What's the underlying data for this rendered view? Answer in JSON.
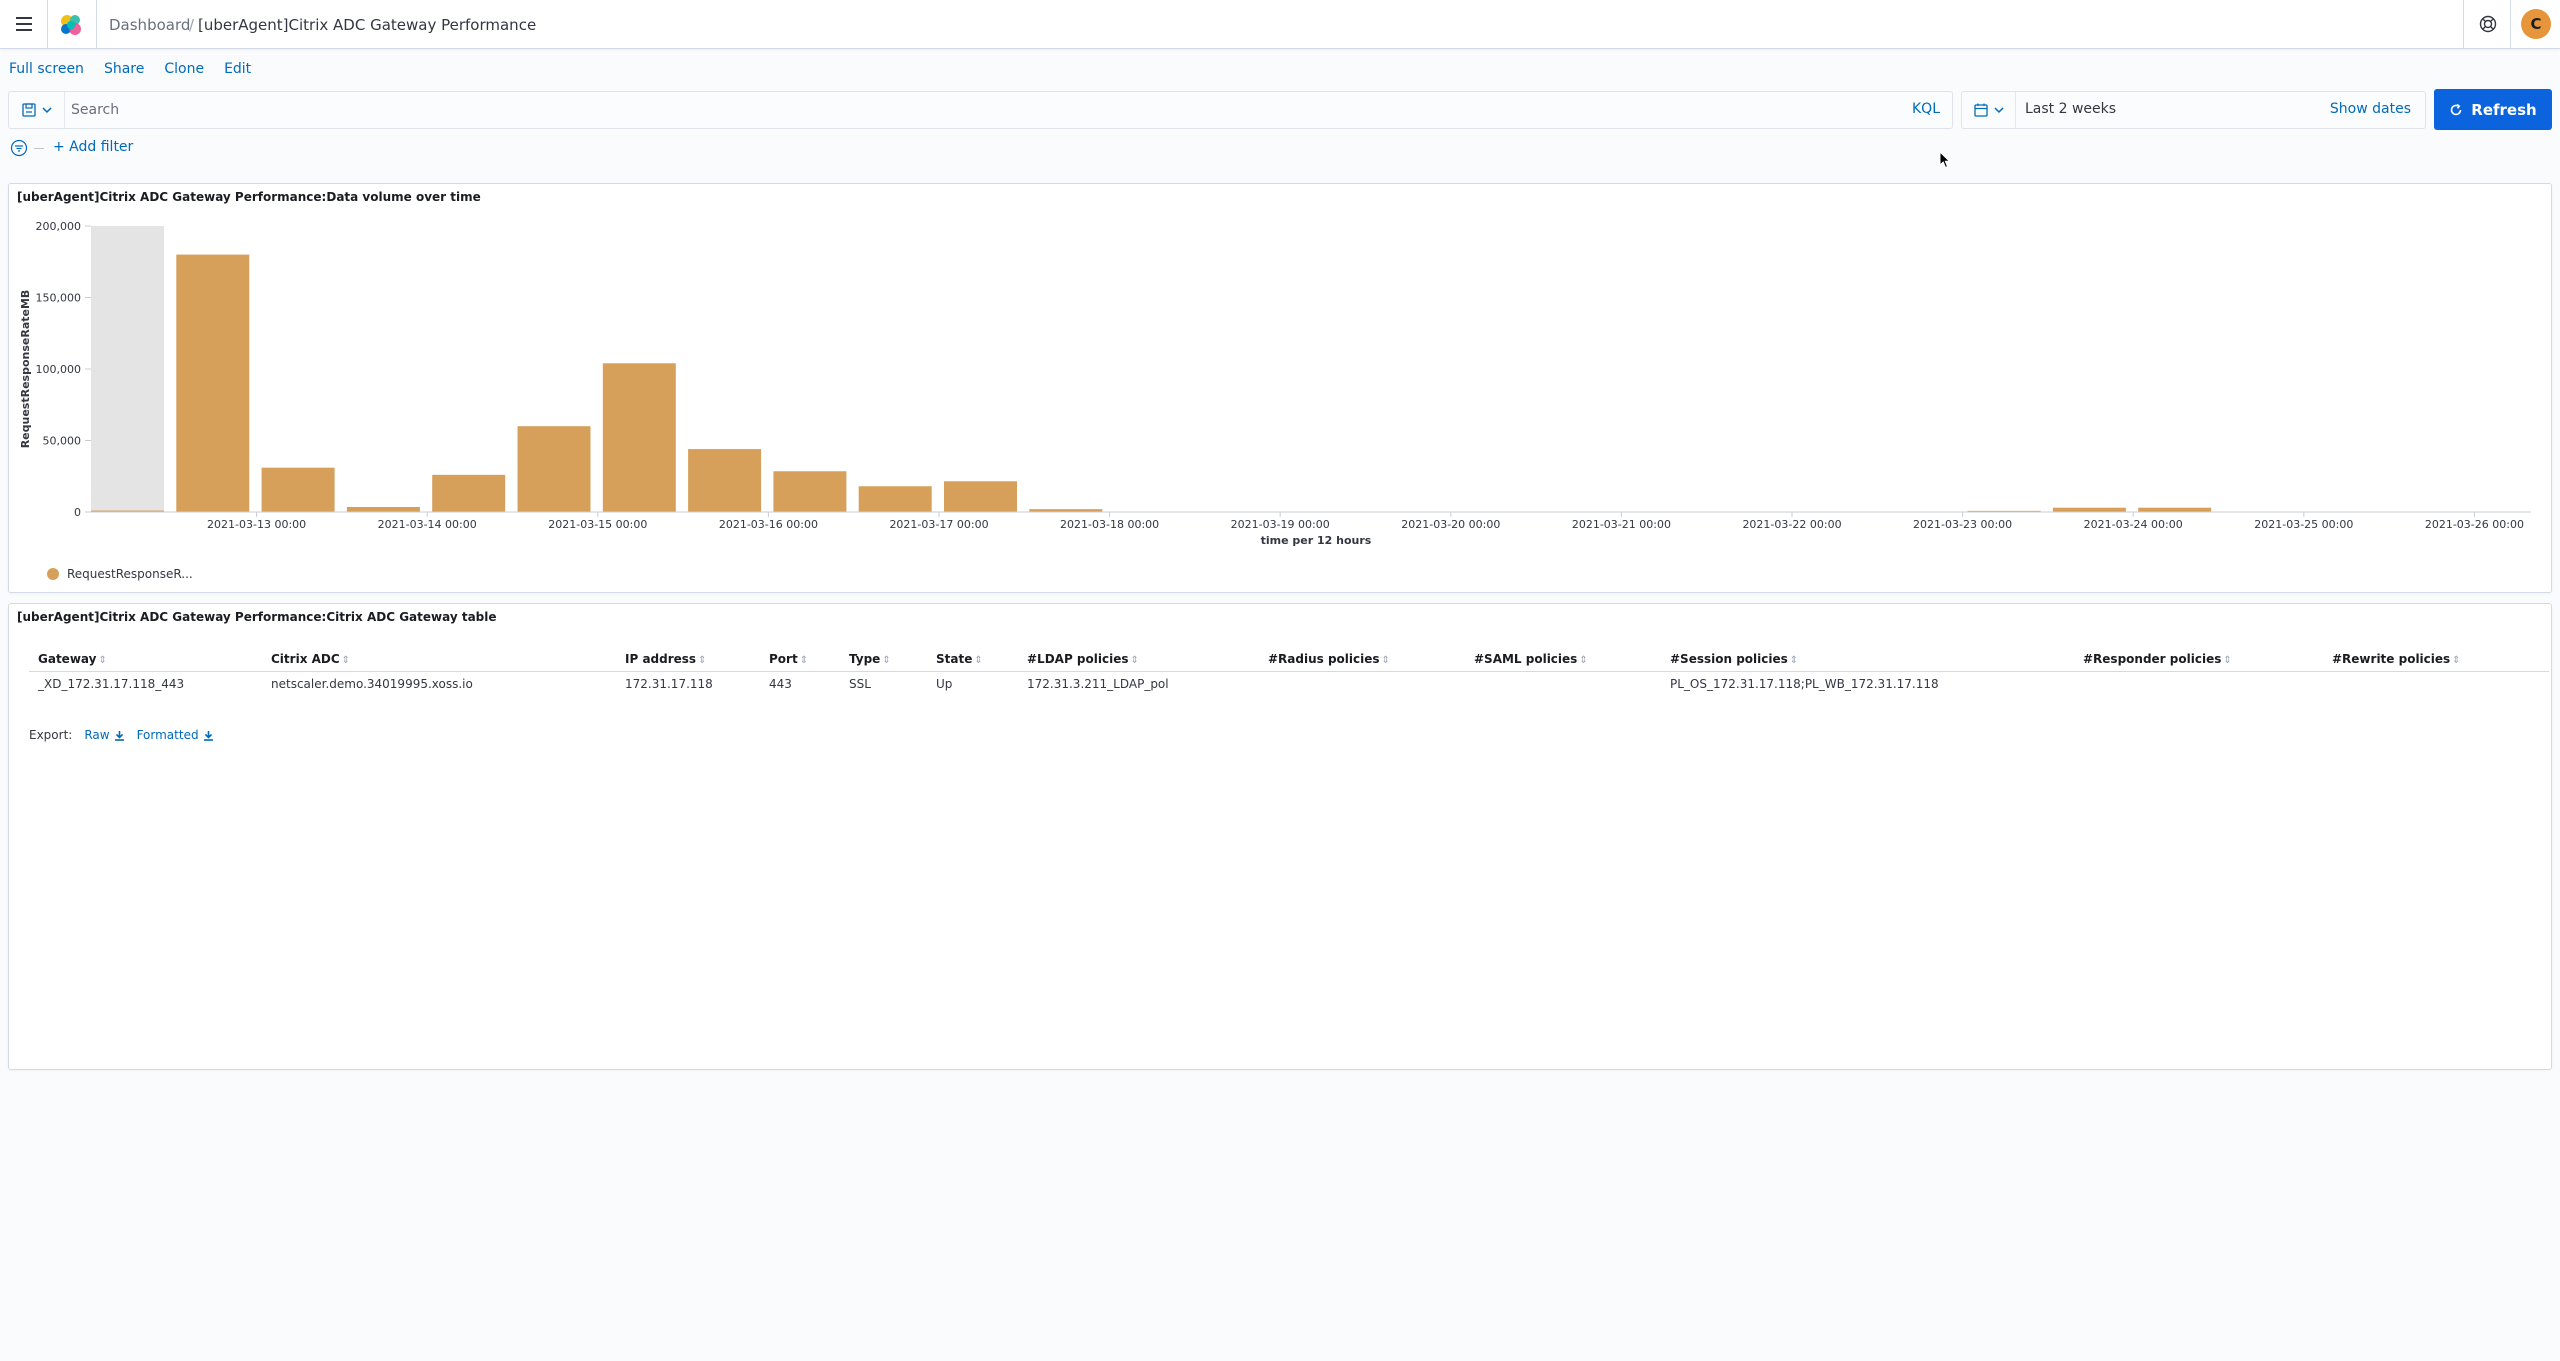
{
  "header": {
    "breadcrumbs": [
      "Dashboard",
      "[uberAgent]Citrix ADC Gateway Performance"
    ],
    "avatar_initial": "C",
    "icons": [
      "menu-icon",
      "elastic-logo",
      "help-icon"
    ]
  },
  "topnav": {
    "items": [
      "Full screen",
      "Share",
      "Clone",
      "Edit"
    ]
  },
  "query": {
    "placeholder": "Search",
    "language": "KQL"
  },
  "time": {
    "range": "Last 2 weeks",
    "show_dates": "Show dates",
    "refresh": "Refresh"
  },
  "filter": {
    "add_label": "+ Add filter"
  },
  "panels": {
    "chart_title": "[uberAgent]Citrix ADC Gateway Performance:Data volume over time",
    "table_title": "[uberAgent]Citrix ADC Gateway Performance:Citrix ADC Gateway table"
  },
  "chart_data": {
    "type": "bar",
    "ylabel": "RequestResponseRateMB",
    "xlabel": "time per 12 hours",
    "ylim": [
      0,
      200000
    ],
    "y_ticks": [
      "0",
      "50,000",
      "100,000",
      "150,000",
      "200,000"
    ],
    "x_tick_labels": [
      "2021-03-13 00:00",
      "2021-03-14 00:00",
      "2021-03-15 00:00",
      "2021-03-16 00:00",
      "2021-03-17 00:00",
      "2021-03-18 00:00",
      "2021-03-19 00:00",
      "2021-03-20 00:00",
      "2021-03-21 00:00",
      "2021-03-22 00:00",
      "2021-03-23 00:00",
      "2021-03-24 00:00",
      "2021-03-25 00:00",
      "2021-03-26 00:00"
    ],
    "series": [
      {
        "name": "RequestResponseR...",
        "color": "#d6a05b",
        "values": [
          1000,
          180000,
          31000,
          3500,
          26000,
          60000,
          104000,
          44000,
          28500,
          18000,
          21500,
          2000,
          0,
          0,
          0,
          0,
          0,
          0,
          0,
          0,
          0,
          0,
          800,
          3000,
          3000,
          0,
          0,
          0,
          0
        ]
      }
    ],
    "partial_bucket_index": 0,
    "partial_bucket_color": "#e4e4e4",
    "grid": false,
    "legend_position": "bottom-left"
  },
  "table": {
    "columns": [
      "Gateway",
      "Citrix ADC",
      "IP address",
      "Port",
      "Type",
      "State",
      "#LDAP policies",
      "#Radius policies",
      "#SAML policies",
      "#Session policies",
      "#Responder policies",
      "#Rewrite policies"
    ],
    "rows": [
      [
        "_XD_172.31.17.118_443",
        "netscaler.demo.34019995.xoss.io",
        "172.31.17.118",
        "443",
        "SSL",
        "Up",
        "172.31.3.211_LDAP_pol",
        "",
        "",
        "PL_OS_172.31.17.118;PL_WB_172.31.17.118",
        "",
        ""
      ]
    ],
    "export_label": "Export:",
    "export_raw": "Raw",
    "export_formatted": "Formatted"
  }
}
